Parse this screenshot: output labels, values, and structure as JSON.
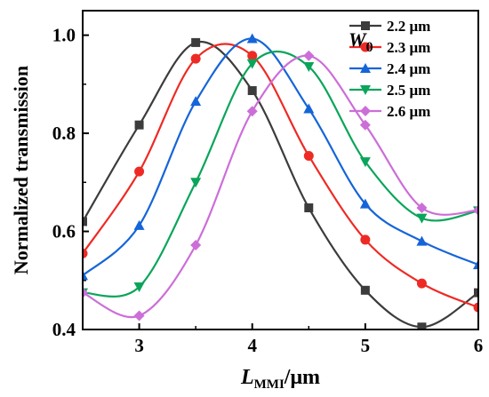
{
  "chart_data": {
    "type": "line",
    "xlabel": {
      "main": "L",
      "sub": "MMI",
      "unit": "/μm"
    },
    "ylabel": "Normalized transmission",
    "xlim": [
      2.5,
      6
    ],
    "ylim": [
      0.4,
      1.05
    ],
    "xticks": [
      "3",
      "4",
      "5",
      "6"
    ],
    "yticks": [
      "0.4",
      "0.6",
      "0.8",
      "1.0"
    ],
    "legend_title": {
      "main": "W",
      "sub": "0"
    },
    "legend_position": "top-right",
    "grid": false,
    "series": [
      {
        "name": "2.2 μm",
        "color": "#3c3c3c",
        "marker": "square",
        "x": [
          2.5,
          3,
          3.5,
          4,
          4.5,
          5,
          5.5,
          6
        ],
        "y": [
          0.62,
          0.817,
          0.985,
          0.887,
          0.648,
          0.48,
          0.405,
          0.475
        ]
      },
      {
        "name": "2.3 μm",
        "color": "#ee2a24",
        "marker": "circle",
        "x": [
          2.5,
          3,
          3.5,
          4,
          4.5,
          5,
          5.5,
          6
        ],
        "y": [
          0.555,
          0.722,
          0.952,
          0.958,
          0.754,
          0.583,
          0.494,
          0.445
        ]
      },
      {
        "name": "2.4 μm",
        "color": "#1565d8",
        "marker": "triangle-up",
        "x": [
          2.5,
          3,
          3.5,
          4,
          4.5,
          5,
          5.5,
          6
        ],
        "y": [
          0.51,
          0.612,
          0.865,
          0.993,
          0.85,
          0.656,
          0.58,
          0.532
        ]
      },
      {
        "name": "2.5 μm",
        "color": "#0aa55a",
        "marker": "triangle-down",
        "x": [
          2.5,
          3,
          3.5,
          4,
          4.5,
          5,
          5.5,
          6
        ],
        "y": [
          0.475,
          0.487,
          0.7,
          0.942,
          0.936,
          0.742,
          0.627,
          0.642
        ]
      },
      {
        "name": "2.6 μm",
        "color": "#cc6ed8",
        "marker": "diamond",
        "x": [
          2.5,
          3,
          3.5,
          4,
          4.5,
          5,
          5.5,
          6
        ],
        "y": [
          0.475,
          0.428,
          0.572,
          0.845,
          0.958,
          0.817,
          0.648,
          0.643
        ]
      }
    ]
  }
}
